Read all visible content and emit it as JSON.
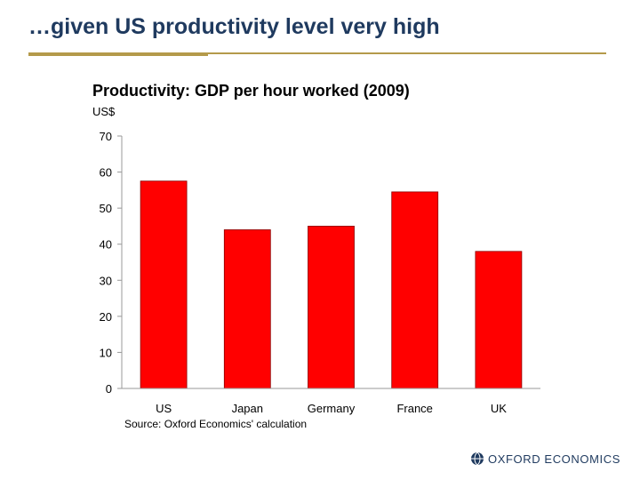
{
  "slide": {
    "title": "…given US productivity level very high",
    "logo": "OXFORD ECONOMICS"
  },
  "colors": {
    "bar": "#ff0000",
    "bar_outline": "#8b0000",
    "title": "#1f3a5f",
    "accent_rule": "#b49a4a"
  },
  "chart_data": {
    "type": "bar",
    "title": "Productivity: GDP per hour worked (2009)",
    "ylabel": "US$",
    "xlabel": "",
    "categories": [
      "US",
      "Japan",
      "Germany",
      "France",
      "UK"
    ],
    "values": [
      57.5,
      44,
      45,
      54.5,
      38
    ],
    "ylim": [
      0,
      70
    ],
    "yticks": [
      0,
      10,
      20,
      30,
      40,
      50,
      60,
      70
    ],
    "grid": false,
    "source": "Source: Oxford Economics' calculation"
  }
}
